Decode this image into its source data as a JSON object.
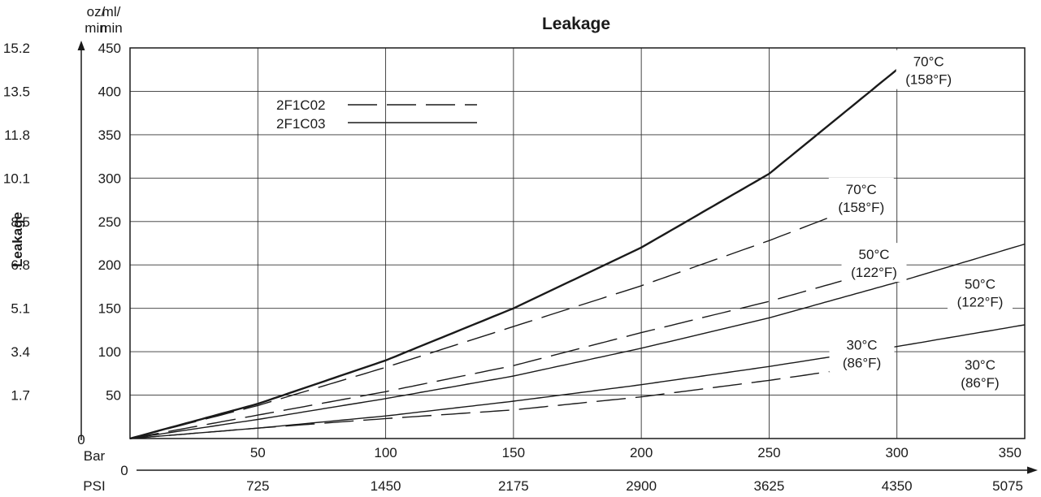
{
  "chart_data": {
    "type": "line",
    "title": "Leakage",
    "ylabel": "Leakage",
    "unit_oz_top": "oz/",
    "unit_oz_bottom": "min",
    "unit_ml_top": "ml/",
    "unit_ml_bottom": "min",
    "x_bar_label": "Bar",
    "x_psi_label": "PSI",
    "x_psi_zero": "0",
    "y_zero": "0",
    "xlim": [
      0,
      350
    ],
    "ylim": [
      0,
      450
    ],
    "x_bar_ticks": [
      {
        "v": 50,
        "label": "50"
      },
      {
        "v": 100,
        "label": "100"
      },
      {
        "v": 150,
        "label": "150"
      },
      {
        "v": 200,
        "label": "200"
      },
      {
        "v": 250,
        "label": "250"
      },
      {
        "v": 300,
        "label": "300"
      },
      {
        "v": 350,
        "label": "350"
      }
    ],
    "x_psi_ticks": [
      {
        "v": 50,
        "label": "725"
      },
      {
        "v": 100,
        "label": "1450"
      },
      {
        "v": 150,
        "label": "2175"
      },
      {
        "v": 200,
        "label": "2900"
      },
      {
        "v": 250,
        "label": "3625"
      },
      {
        "v": 300,
        "label": "4350"
      },
      {
        "v": 350,
        "label": "5075"
      }
    ],
    "y_ml_ticks": [
      {
        "v": 50,
        "label": "50"
      },
      {
        "v": 100,
        "label": "100"
      },
      {
        "v": 150,
        "label": "150"
      },
      {
        "v": 200,
        "label": "200"
      },
      {
        "v": 250,
        "label": "250"
      },
      {
        "v": 300,
        "label": "300"
      },
      {
        "v": 350,
        "label": "350"
      },
      {
        "v": 400,
        "label": "400"
      },
      {
        "v": 450,
        "label": "450"
      }
    ],
    "y_oz_ticks": [
      {
        "v": 50,
        "label": "1.7"
      },
      {
        "v": 100,
        "label": "3.4"
      },
      {
        "v": 150,
        "label": "5.1"
      },
      {
        "v": 200,
        "label": "6.8"
      },
      {
        "v": 250,
        "label": "8.5"
      },
      {
        "v": 300,
        "label": "10.1"
      },
      {
        "v": 350,
        "label": "11.8"
      },
      {
        "v": 400,
        "label": "13.5"
      },
      {
        "v": 450,
        "label": "15.2"
      }
    ],
    "grid": true,
    "legend": [
      {
        "label": "2F1C02",
        "style": "dashed"
      },
      {
        "label": "2F1C03",
        "style": "solid"
      }
    ],
    "series": [
      {
        "model": "2F1C03",
        "style": "solid",
        "width": "thick",
        "label1": "70°C",
        "label2": "(158°F)",
        "x": [
          0,
          50,
          100,
          150,
          200,
          250,
          300
        ],
        "y": [
          0,
          40,
          90,
          150,
          220,
          305,
          425
        ]
      },
      {
        "model": "2F1C03",
        "style": "solid",
        "width": "thin",
        "label1": "50°C",
        "label2": "(122°F)",
        "x": [
          0,
          50,
          100,
          150,
          200,
          250,
          300,
          350
        ],
        "y": [
          0,
          22,
          46,
          72,
          104,
          139,
          180,
          224
        ]
      },
      {
        "model": "2F1C03",
        "style": "solid",
        "width": "thin",
        "label1": "30°C",
        "label2": "(86°F)",
        "x": [
          0,
          50,
          100,
          150,
          200,
          250,
          300,
          350
        ],
        "y": [
          0,
          12,
          26,
          43,
          62,
          83,
          106,
          131
        ]
      },
      {
        "model": "2F1C02",
        "style": "dashed",
        "width": "thin",
        "label1": "70°C",
        "label2": "(158°F)",
        "x": [
          0,
          50,
          100,
          150,
          200,
          250,
          280
        ],
        "y": [
          0,
          38,
          82,
          129,
          176,
          228,
          262
        ]
      },
      {
        "model": "2F1C02",
        "style": "dashed",
        "width": "thin",
        "label1": "50°C",
        "label2": "(122°F)",
        "x": [
          0,
          50,
          100,
          150,
          200,
          250,
          285
        ],
        "y": [
          0,
          27,
          54,
          84,
          122,
          158,
          187
        ]
      },
      {
        "model": "2F1C02",
        "style": "dashed",
        "width": "thin",
        "label1": "30°C",
        "label2": "(86°F)",
        "x": [
          0,
          50,
          100,
          150,
          200,
          250,
          285
        ],
        "y": [
          0,
          12,
          23,
          33,
          48,
          67,
          82
        ]
      }
    ]
  }
}
